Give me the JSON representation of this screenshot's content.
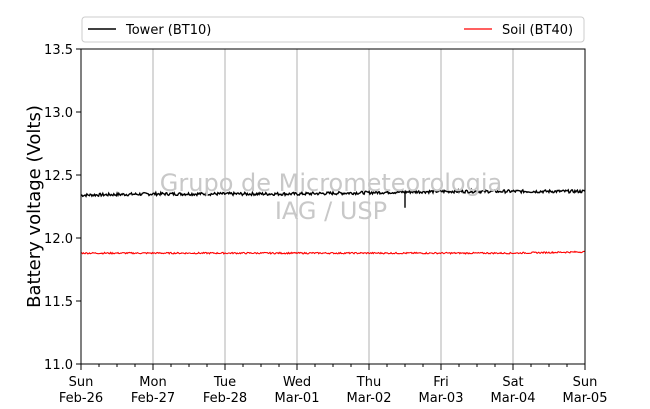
{
  "chart_data": {
    "type": "line",
    "ylabel": "Battery voltage (Volts)",
    "ylim": [
      11.0,
      13.5
    ],
    "yticks": [
      "11.0",
      "11.5",
      "12.0",
      "12.5",
      "13.0",
      "13.5"
    ],
    "x_days": [
      {
        "day": "Sun",
        "date": "Feb-26"
      },
      {
        "day": "Mon",
        "date": "Feb-27"
      },
      {
        "day": "Tue",
        "date": "Feb-28"
      },
      {
        "day": "Wed",
        "date": "Mar-01"
      },
      {
        "day": "Thu",
        "date": "Mar-02"
      },
      {
        "day": "Fri",
        "date": "Mar-03"
      },
      {
        "day": "Sat",
        "date": "Mar-04"
      },
      {
        "day": "Sun",
        "date": "Mar-05"
      }
    ],
    "grid": "vertical",
    "legend_position": "top",
    "watermark": [
      "Grupo de Micrometeorologia",
      "IAG / USP"
    ],
    "series": [
      {
        "name": "Tower (BT10)",
        "color": "#000000",
        "x": [
          "Feb-26",
          "Feb-27",
          "Feb-28",
          "Mar-01",
          "Mar-02",
          "Mar-03",
          "Mar-04",
          "Mar-05"
        ],
        "values": [
          12.34,
          12.35,
          12.35,
          12.35,
          12.36,
          12.37,
          12.37,
          12.37
        ],
        "dip": {
          "x": "Mar-02 12:00",
          "value": 12.24
        }
      },
      {
        "name": "Soil (BT40)",
        "color": "#ff0000",
        "x": [
          "Feb-26",
          "Feb-27",
          "Feb-28",
          "Mar-01",
          "Mar-02",
          "Mar-03",
          "Mar-04",
          "Mar-05"
        ],
        "values": [
          11.88,
          11.88,
          11.88,
          11.88,
          11.88,
          11.88,
          11.88,
          11.89
        ]
      }
    ]
  }
}
